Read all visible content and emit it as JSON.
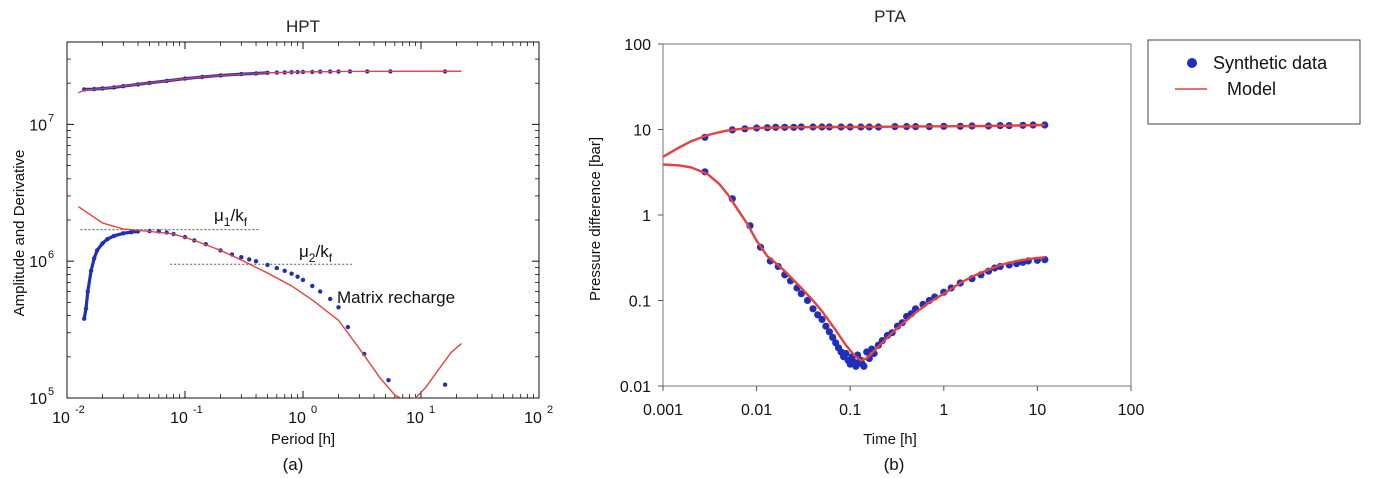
{
  "chart_data": [
    {
      "type": "scatter",
      "panel_label": "(a)",
      "title": "HPT",
      "xlabel": "Period [h]",
      "ylabel": "Amplitude and Derivative",
      "xscale": "log",
      "yscale": "log",
      "xlim": [
        0.01,
        100
      ],
      "ylim": [
        100000,
        40000000
      ],
      "x_ticks": [
        {
          "label_base": "10",
          "label_exp": "-2"
        },
        {
          "label_base": "10",
          "label_exp": "-1"
        },
        {
          "label_base": "10",
          "label_exp": "0"
        },
        {
          "label_base": "10",
          "label_exp": "1"
        },
        {
          "label_base": "10",
          "label_exp": "2"
        }
      ],
      "y_ticks": [
        {
          "label_base": "10",
          "label_exp": "5"
        },
        {
          "label_base": "10",
          "label_exp": "6"
        },
        {
          "label_base": "10",
          "label_exp": "7"
        }
      ],
      "grid": false,
      "annotations": [
        {
          "text": "μ",
          "sub1": "1",
          "slash": "/k",
          "sub2": "f",
          "level": 1700000,
          "x_from": 0.013,
          "x_to": 0.42
        },
        {
          "text": "μ",
          "sub1": "2",
          "slash": "/k",
          "sub2": "f",
          "level": 950000,
          "x_from": 0.075,
          "x_to": 2.6
        },
        {
          "text": "Matrix recharge"
        }
      ],
      "series": [
        {
          "role": "amplitude-data",
          "style": "markers",
          "color": "#1f2fb8",
          "x": [
            0.014,
            0.017,
            0.02,
            0.025,
            0.03,
            0.04,
            0.05,
            0.07,
            0.1,
            0.14,
            0.2,
            0.3,
            0.4,
            0.5,
            0.6,
            0.7,
            0.8,
            0.9,
            1.0,
            1.2,
            1.4,
            1.7,
            2.0,
            2.5,
            3.5,
            5.5,
            16
          ],
          "y": [
            18000000,
            18100000,
            18300000,
            18600000,
            19000000,
            19600000,
            20100000,
            20800000,
            21600000,
            22200000,
            22800000,
            23300000,
            23600000,
            23800000,
            23900000,
            24000000,
            24050000,
            24100000,
            24150000,
            24200000,
            24250000,
            24300000,
            24300000,
            24350000,
            24400000,
            24400000,
            24400000
          ]
        },
        {
          "role": "amplitude-model",
          "style": "line",
          "color": "#e8413c",
          "x": [
            0.0125,
            0.014,
            0.02,
            0.03,
            0.05,
            0.1,
            0.2,
            0.5,
            1,
            2,
            5,
            10,
            22
          ],
          "y": [
            17000000,
            17800000,
            18300000,
            19000000,
            20100000,
            21600000,
            22800000,
            23800000,
            24200000,
            24350000,
            24400000,
            24450000,
            24450000
          ]
        },
        {
          "role": "derivative-data",
          "style": "markers",
          "color": "#1f2fb8",
          "x": [
            0.014,
            0.0145,
            0.015,
            0.016,
            0.017,
            0.018,
            0.02,
            0.022,
            0.025,
            0.03,
            0.035,
            0.04,
            0.05,
            0.06,
            0.07,
            0.08,
            0.1,
            0.12,
            0.15,
            0.2,
            0.25,
            0.3,
            0.35,
            0.4,
            0.5,
            0.6,
            0.7,
            0.8,
            0.9,
            1.0,
            1.2,
            1.4,
            1.7,
            2.0,
            2.4,
            3.3,
            5.3,
            16
          ],
          "y": [
            380000,
            450000,
            600000,
            850000,
            1050000,
            1200000,
            1350000,
            1450000,
            1530000,
            1600000,
            1630000,
            1650000,
            1660000,
            1650000,
            1620000,
            1580000,
            1500000,
            1420000,
            1330000,
            1200000,
            1120000,
            1070000,
            1030000,
            1000000,
            940000,
            890000,
            850000,
            810000,
            770000,
            730000,
            660000,
            600000,
            530000,
            460000,
            330000,
            210000,
            135000,
            125000
          ]
        },
        {
          "role": "derivative-model",
          "style": "line",
          "color": "#e8413c",
          "x": [
            0.0125,
            0.015,
            0.02,
            0.03,
            0.05,
            0.08,
            0.12,
            0.2,
            0.3,
            0.5,
            0.8,
            1.2,
            2.0,
            3.0,
            4.5,
            6.0,
            7.5,
            9.0,
            11,
            14,
            18,
            22
          ],
          "y": [
            2500000,
            2250000,
            1900000,
            1720000,
            1650000,
            1580000,
            1420000,
            1200000,
            1020000,
            820000,
            660000,
            520000,
            370000,
            230000,
            140000,
            105000,
            95000,
            100000,
            120000,
            160000,
            215000,
            250000
          ]
        }
      ]
    },
    {
      "type": "scatter",
      "panel_label": "(b)",
      "title": "PTA",
      "xlabel": "Time [h]",
      "ylabel": "Pressure difference [bar]",
      "xscale": "log",
      "yscale": "log",
      "xlim": [
        0.001,
        100
      ],
      "ylim": [
        0.01,
        100
      ],
      "x_ticks": [
        "0.001",
        "0.01",
        "0.1",
        "1",
        "10",
        "100"
      ],
      "y_ticks": [
        "0.01",
        "0.1",
        "1",
        "10",
        "100"
      ],
      "grid": false,
      "legend": {
        "position": "outside-right",
        "entries": [
          {
            "label": "Synthetic data",
            "marker": "dot",
            "color": "#1f2fb8"
          },
          {
            "label": "Model",
            "marker": "line",
            "color": "#e8413c"
          }
        ]
      },
      "series": [
        {
          "name": "Synthetic data",
          "role": "pressure",
          "style": "markers",
          "color": "#1f2fb8",
          "x": [
            0.0028,
            0.0055,
            0.0075,
            0.01,
            0.013,
            0.016,
            0.02,
            0.025,
            0.03,
            0.04,
            0.05,
            0.06,
            0.08,
            0.1,
            0.13,
            0.16,
            0.2,
            0.3,
            0.4,
            0.5,
            0.7,
            1,
            1.5,
            2,
            3,
            4,
            5,
            7,
            9,
            12
          ],
          "y": [
            8.1,
            9.9,
            10.2,
            10.4,
            10.5,
            10.6,
            10.6,
            10.6,
            10.7,
            10.7,
            10.7,
            10.7,
            10.7,
            10.7,
            10.7,
            10.7,
            10.7,
            10.8,
            10.8,
            10.8,
            10.8,
            10.9,
            10.9,
            11.0,
            11.0,
            11.1,
            11.1,
            11.2,
            11.3,
            11.3
          ]
        },
        {
          "name": "Synthetic data",
          "role": "derivative",
          "style": "markers",
          "color": "#1f2fb8",
          "x": [
            0.0028,
            0.0055,
            0.0085,
            0.011,
            0.014,
            0.017,
            0.02,
            0.023,
            0.027,
            0.03,
            0.035,
            0.04,
            0.045,
            0.05,
            0.055,
            0.06,
            0.065,
            0.07,
            0.075,
            0.08,
            0.085,
            0.09,
            0.095,
            0.1,
            0.105,
            0.11,
            0.115,
            0.12,
            0.125,
            0.13,
            0.135,
            0.14,
            0.15,
            0.16,
            0.17,
            0.18,
            0.2,
            0.22,
            0.25,
            0.28,
            0.32,
            0.36,
            0.4,
            0.45,
            0.5,
            0.6,
            0.7,
            0.8,
            1.0,
            1.2,
            1.5,
            2,
            2.5,
            3,
            3.5,
            4,
            5,
            6,
            7,
            8,
            10,
            12
          ],
          "y": [
            3.2,
            1.55,
            0.75,
            0.42,
            0.29,
            0.25,
            0.2,
            0.17,
            0.14,
            0.12,
            0.1,
            0.08,
            0.068,
            0.06,
            0.05,
            0.043,
            0.037,
            0.032,
            0.028,
            0.025,
            0.022,
            0.024,
            0.02,
            0.018,
            0.022,
            0.019,
            0.017,
            0.023,
            0.019,
            0.02,
            0.018,
            0.017,
            0.025,
            0.021,
            0.027,
            0.024,
            0.03,
            0.034,
            0.039,
            0.042,
            0.05,
            0.055,
            0.065,
            0.07,
            0.08,
            0.09,
            0.1,
            0.11,
            0.125,
            0.14,
            0.16,
            0.18,
            0.2,
            0.22,
            0.24,
            0.25,
            0.26,
            0.27,
            0.28,
            0.29,
            0.295,
            0.3
          ]
        },
        {
          "name": "Model",
          "role": "pressure",
          "style": "line",
          "color": "#e8413c",
          "x": [
            0.001,
            0.0015,
            0.002,
            0.003,
            0.004,
            0.005,
            0.007,
            0.01,
            0.02,
            0.05,
            0.1,
            0.3,
            1,
            3,
            12
          ],
          "y": [
            4.8,
            6.2,
            7.3,
            8.6,
            9.3,
            9.8,
            10.2,
            10.4,
            10.6,
            10.7,
            10.7,
            10.8,
            10.9,
            11.0,
            11.3
          ]
        },
        {
          "name": "Model",
          "role": "derivative",
          "style": "line",
          "color": "#e8413c",
          "x": [
            0.001,
            0.0015,
            0.002,
            0.003,
            0.004,
            0.005,
            0.006,
            0.008,
            0.01,
            0.013,
            0.017,
            0.02,
            0.03,
            0.04,
            0.05,
            0.07,
            0.09,
            0.11,
            0.13,
            0.15,
            0.2,
            0.3,
            0.5,
            0.7,
            1,
            1.5,
            2,
            3,
            4,
            6,
            9,
            12
          ],
          "y": [
            3.9,
            3.8,
            3.6,
            3.0,
            2.3,
            1.7,
            1.25,
            0.78,
            0.5,
            0.33,
            0.26,
            0.22,
            0.14,
            0.1,
            0.075,
            0.045,
            0.03,
            0.023,
            0.02,
            0.021,
            0.029,
            0.045,
            0.072,
            0.095,
            0.12,
            0.16,
            0.19,
            0.23,
            0.26,
            0.29,
            0.31,
            0.32
          ]
        }
      ]
    }
  ]
}
